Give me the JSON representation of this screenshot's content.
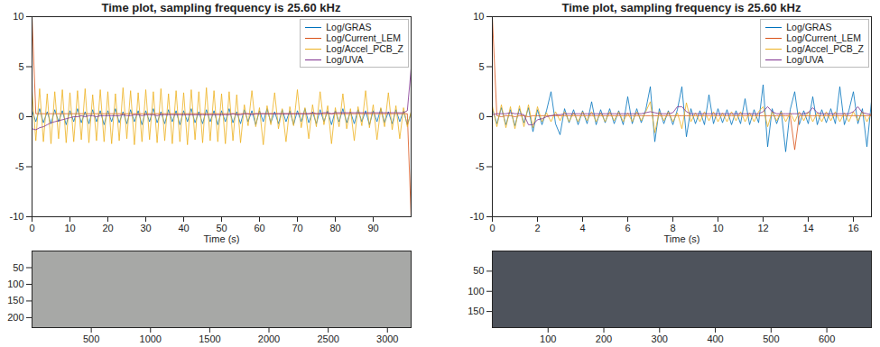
{
  "chart_data": [
    {
      "type": "line",
      "title": "Time plot, sampling frequency is 25.60 kHz",
      "x_label": "Time (s)",
      "xlim": [
        0,
        100
      ],
      "xticks": [
        0,
        10,
        20,
        30,
        40,
        50,
        60,
        70,
        80,
        90
      ],
      "ylim": [
        -10,
        10
      ],
      "yticks": [
        -10,
        -5,
        0,
        5,
        10
      ],
      "grid": false,
      "legend": "upper right",
      "x": [
        0,
        1,
        2,
        3,
        4,
        5,
        6,
        7,
        8,
        9,
        10,
        11,
        12,
        13,
        14,
        15,
        16,
        17,
        18,
        19,
        20,
        21,
        22,
        23,
        24,
        25,
        26,
        27,
        28,
        29,
        30,
        31,
        32,
        33,
        34,
        35,
        36,
        37,
        38,
        39,
        40,
        41,
        42,
        43,
        44,
        45,
        46,
        47,
        48,
        49,
        50,
        51,
        52,
        53,
        54,
        55,
        56,
        57,
        58,
        59,
        60,
        61,
        62,
        63,
        64,
        65,
        66,
        67,
        68,
        69,
        70,
        71,
        72,
        73,
        74,
        75,
        76,
        77,
        78,
        79,
        80,
        81,
        82,
        83,
        84,
        85,
        86,
        87,
        88,
        89,
        90,
        91,
        92,
        93,
        94,
        95,
        96,
        97,
        98,
        99,
        100
      ],
      "series": [
        {
          "name": "Log/GRAS",
          "color": "#0072BD",
          "values": [
            0.6,
            -0.5,
            0.8,
            -0.6,
            0.5,
            -0.7,
            0.7,
            -0.5,
            0.6,
            -0.8,
            0.6,
            -0.5,
            0.8,
            -0.6,
            0.5,
            -0.7,
            0.7,
            -0.5,
            0.6,
            -0.8,
            0.6,
            -0.5,
            0.8,
            -0.6,
            0.5,
            -0.7,
            0.7,
            -0.5,
            0.6,
            -0.8,
            0.6,
            -0.5,
            0.8,
            -0.6,
            0.5,
            -0.7,
            0.7,
            -0.5,
            0.6,
            -0.8,
            0.6,
            -0.5,
            0.8,
            -0.6,
            0.5,
            -0.7,
            0.7,
            -0.5,
            0.6,
            -0.8,
            0.6,
            -0.5,
            0.8,
            -0.6,
            0.5,
            -0.7,
            0.7,
            -0.5,
            0.6,
            -0.8,
            0.6,
            -0.5,
            0.8,
            -0.6,
            0.5,
            -0.7,
            0.7,
            -0.5,
            0.6,
            -0.8,
            0.6,
            -0.5,
            0.8,
            -0.6,
            0.5,
            -0.7,
            0.7,
            -0.5,
            0.6,
            -0.8,
            0.6,
            -0.5,
            0.8,
            -0.6,
            0.5,
            -0.7,
            0.7,
            -0.5,
            0.6,
            -0.8,
            0.6,
            -0.5,
            0.8,
            -0.6,
            0.5,
            -0.7,
            0.7,
            -0.5,
            0.6,
            -0.8,
            0.4
          ]
        },
        {
          "name": "Log/Current_LEM",
          "color": "#D95319",
          "values": [
            10,
            0.3,
            0.3,
            0.3,
            0.3,
            0.3,
            0.3,
            0.3,
            0.3,
            0.3,
            0.3,
            0.3,
            0.3,
            0.3,
            0.3,
            0.3,
            0.3,
            0.3,
            0.3,
            0.3,
            0.3,
            0.3,
            0.3,
            0.3,
            0.3,
            0.3,
            0.3,
            0.3,
            0.3,
            0.3,
            0.3,
            0.3,
            0.3,
            0.3,
            0.3,
            0.3,
            0.3,
            0.3,
            0.3,
            0.3,
            0.3,
            0.3,
            0.3,
            0.3,
            0.3,
            0.3,
            0.3,
            0.3,
            0.3,
            0.3,
            0.3,
            0.3,
            0.3,
            0.3,
            0.3,
            0.3,
            0.3,
            0.3,
            0.3,
            0.3,
            0.3,
            0.3,
            0.3,
            0.3,
            0.3,
            0.3,
            0.3,
            0.3,
            0.3,
            0.3,
            0.3,
            0.3,
            0.3,
            0.3,
            0.3,
            0.3,
            0.3,
            0.3,
            0.3,
            0.3,
            0.3,
            0.3,
            0.3,
            0.3,
            0.3,
            0.3,
            0.3,
            0.3,
            0.3,
            0.3,
            0.3,
            0.3,
            0.3,
            0.3,
            0.3,
            0.3,
            0.3,
            0.3,
            0.3,
            0.3,
            -10
          ]
        },
        {
          "name": "Log/Accel_PCB_Z",
          "color": "#EDB120",
          "values": [
            2.6,
            -2.4,
            2.8,
            -2.5,
            2.3,
            -2.7,
            2.5,
            -2.2,
            2.7,
            -2.6,
            2.4,
            -2.5,
            2.6,
            -2.3,
            2.8,
            -2.6,
            2.2,
            -2.4,
            2.7,
            -2.5,
            2.5,
            -2.7,
            2.3,
            -2.4,
            2.9,
            -2.2,
            2.6,
            -2.8,
            2.4,
            -2.5,
            2.7,
            -2.3,
            2.5,
            -2.6,
            2.8,
            -2.4,
            2.3,
            -2.7,
            2.6,
            -2.5,
            2.4,
            -2.8,
            2.7,
            -2.3,
            2.5,
            -2.6,
            2.9,
            -2.4,
            2.6,
            -2.5,
            2.3,
            -2.7,
            2.5,
            -2.4,
            2.2,
            -2.6,
            1.2,
            -0.9,
            2.6,
            -1.0,
            0.9,
            -2.8,
            1.1,
            -0.8,
            2.4,
            -1.2,
            0.8,
            -2.5,
            1.0,
            -0.9,
            2.7,
            -1.1,
            0.9,
            -2.2,
            1.2,
            -1.0,
            2.5,
            -0.8,
            1.1,
            -2.7,
            0.9,
            -1.0,
            2.3,
            -1.2,
            0.8,
            -2.4,
            1.0,
            -0.9,
            2.6,
            -1.1,
            1.2,
            -2.3,
            0.9,
            -1.0,
            2.4,
            -1.3,
            1.1,
            -2.2,
            0.9,
            -1.0,
            0.5
          ]
        },
        {
          "name": "Log/UVA",
          "color": "#7E2F8E",
          "values": [
            -1.2,
            -1.3,
            -1.1,
            -1.0,
            -0.8,
            -0.6,
            -0.5,
            -0.4,
            -0.3,
            -0.2,
            -0.1,
            0.0,
            0.0,
            0.1,
            0.0,
            0.1,
            0.1,
            0.0,
            0.1,
            0.1,
            0.1,
            0.1,
            0.1,
            0.1,
            0.2,
            0.1,
            0.1,
            0.2,
            0.2,
            0.1,
            0.2,
            0.2,
            0.2,
            0.1,
            0.2,
            0.2,
            0.2,
            0.2,
            0.2,
            0.2,
            0.2,
            0.2,
            0.2,
            0.2,
            0.2,
            0.2,
            0.2,
            0.2,
            0.2,
            0.2,
            0.2,
            0.2,
            0.2,
            0.3,
            0.2,
            0.2,
            0.3,
            0.3,
            0.2,
            0.3,
            0.3,
            0.3,
            0.3,
            0.3,
            0.3,
            0.3,
            0.3,
            0.3,
            0.3,
            0.3,
            0.3,
            0.3,
            0.3,
            0.3,
            0.4,
            0.3,
            0.3,
            0.4,
            0.4,
            0.3,
            0.4,
            0.4,
            0.4,
            0.4,
            0.4,
            0.4,
            0.4,
            0.4,
            0.4,
            0.4,
            0.4,
            0.4,
            0.4,
            0.4,
            0.4,
            0.4,
            0.4,
            0.4,
            0.4,
            0.6,
            4.8
          ]
        }
      ]
    },
    {
      "type": "line",
      "title": "Time plot, sampling frequency is 25.60 kHz",
      "x_label": "Time (s)",
      "xlim": [
        0,
        16.8
      ],
      "xticks": [
        0,
        2,
        4,
        6,
        8,
        10,
        12,
        14,
        16
      ],
      "ylim": [
        -10,
        10
      ],
      "yticks": [
        -10,
        -5,
        0,
        5,
        10
      ],
      "grid": false,
      "legend": "upper right",
      "x": [
        0,
        0.2,
        0.4,
        0.6,
        0.8,
        1,
        1.2,
        1.4,
        1.6,
        1.8,
        2,
        2.2,
        2.4,
        2.6,
        2.8,
        3,
        3.2,
        3.4,
        3.6,
        3.8,
        4,
        4.2,
        4.4,
        4.6,
        4.8,
        5,
        5.2,
        5.4,
        5.6,
        5.8,
        6,
        6.2,
        6.4,
        6.6,
        6.8,
        7,
        7.2,
        7.4,
        7.6,
        7.8,
        8,
        8.2,
        8.4,
        8.6,
        8.8,
        9,
        9.2,
        9.4,
        9.6,
        9.8,
        10,
        10.2,
        10.4,
        10.6,
        10.8,
        11,
        11.2,
        11.4,
        11.6,
        11.8,
        12,
        12.2,
        12.4,
        12.6,
        12.8,
        13,
        13.2,
        13.4,
        13.6,
        13.8,
        14,
        14.2,
        14.4,
        14.6,
        14.8,
        15,
        15.2,
        15.4,
        15.6,
        15.8,
        16,
        16.2,
        16.4,
        16.6,
        16.8
      ],
      "series": [
        {
          "name": "Log/GRAS",
          "color": "#0072BD",
          "values": [
            0.8,
            -0.7,
            0.9,
            -0.8,
            0.7,
            -0.9,
            0.8,
            -0.6,
            0.9,
            -1.5,
            0.7,
            -0.8,
            0.6,
            2.5,
            -0.7,
            -1.8,
            0.8,
            -0.6,
            0.7,
            -0.8,
            0.6,
            -0.7,
            1.5,
            -0.8,
            0.7,
            -0.6,
            0.8,
            -0.7,
            0.6,
            -0.8,
            2.0,
            -0.7,
            0.8,
            -0.6,
            0.7,
            3.0,
            -2.5,
            0.8,
            -0.7,
            0.6,
            -0.8,
            0.7,
            3.0,
            -2.0,
            0.8,
            -0.7,
            0.6,
            -0.8,
            2.2,
            -0.7,
            0.8,
            -0.6,
            0.7,
            -0.8,
            0.6,
            -0.7,
            1.8,
            -0.8,
            0.7,
            -0.6,
            3.2,
            -3.0,
            0.8,
            -0.7,
            0.6,
            -3.5,
            0.7,
            2.5,
            -0.8,
            0.6,
            -0.7,
            2.0,
            -0.8,
            0.7,
            -0.6,
            0.8,
            -0.7,
            3.0,
            -0.8,
            0.6,
            2.5,
            -0.7,
            0.8,
            -3.0,
            1.5
          ]
        },
        {
          "name": "Log/Current_LEM",
          "color": "#D95319",
          "values": [
            10,
            0.1,
            0.0,
            0.1,
            0.1,
            0.0,
            0.1,
            0.1,
            0.0,
            0.1,
            0.1,
            0.1,
            0.1,
            0.1,
            0.1,
            0.1,
            0.1,
            0.1,
            0.1,
            0.1,
            0.1,
            0.1,
            0.1,
            0.1,
            0.1,
            0.1,
            0.1,
            0.1,
            0.1,
            0.1,
            0.1,
            0.1,
            0.1,
            0.1,
            0.1,
            0.1,
            0.1,
            0.1,
            0.1,
            0.1,
            0.1,
            0.1,
            0.1,
            0.1,
            0.1,
            0.1,
            0.1,
            0.1,
            0.1,
            0.1,
            0.1,
            0.1,
            0.1,
            0.1,
            0.1,
            0.1,
            0.1,
            0.1,
            0.1,
            0.1,
            0.1,
            0.1,
            0.1,
            0.1,
            0.1,
            0.1,
            0.1,
            -3.3,
            0.1,
            0.1,
            0.1,
            0.1,
            0.1,
            0.1,
            0.1,
            0.1,
            0.1,
            0.1,
            0.1,
            0.1,
            0.1,
            0.1,
            0.1,
            0.1,
            0.1
          ]
        },
        {
          "name": "Log/Accel_PCB_Z",
          "color": "#EDB120",
          "values": [
            1.1,
            -1.0,
            1.2,
            -1.1,
            1.0,
            -1.2,
            1.1,
            -1.0,
            1.2,
            -1.1,
            1.0,
            -0.5,
            0.4,
            -0.5,
            0.5,
            -0.4,
            0.5,
            -0.5,
            0.4,
            -0.5,
            0.5,
            -0.4,
            0.5,
            -0.5,
            0.4,
            -0.5,
            0.5,
            -0.4,
            0.5,
            -0.5,
            0.4,
            -0.5,
            0.5,
            -0.4,
            0.5,
            1.5,
            -1.6,
            0.5,
            -0.4,
            0.5,
            -0.5,
            0.4,
            -1.2,
            1.4,
            -0.5,
            0.4,
            -0.5,
            0.5,
            -0.4,
            0.5,
            -0.5,
            0.4,
            -0.5,
            0.5,
            -0.4,
            0.5,
            -0.5,
            0.4,
            -0.5,
            0.5,
            1.0,
            -1.0,
            0.5,
            -0.4,
            0.5,
            -0.5,
            0.4,
            -0.5,
            0.5,
            -0.4,
            0.5,
            -0.5,
            0.4,
            -0.5,
            0.5,
            -0.4,
            0.5,
            -0.5,
            0.4,
            -0.5,
            0.5,
            -0.4,
            0.5,
            -0.5,
            0.4
          ]
        },
        {
          "name": "Log/UVA",
          "color": "#7E2F8E",
          "values": [
            0.2,
            0.3,
            0.3,
            0.3,
            0.4,
            0.3,
            0.3,
            0.2,
            -0.8,
            -0.8,
            -0.3,
            -0.2,
            0.0,
            0.1,
            0.2,
            0.2,
            0.3,
            0.3,
            0.3,
            0.3,
            0.3,
            0.3,
            0.3,
            0.3,
            0.3,
            0.3,
            0.3,
            0.3,
            0.3,
            0.3,
            0.3,
            0.3,
            0.3,
            0.3,
            0.4,
            0.5,
            0.4,
            0.3,
            0.3,
            0.3,
            0.4,
            1.0,
            1.0,
            0.5,
            0.3,
            0.3,
            0.3,
            0.3,
            0.3,
            0.3,
            0.3,
            0.3,
            0.3,
            0.3,
            0.3,
            0.3,
            0.3,
            0.3,
            0.3,
            0.3,
            0.5,
            1.0,
            0.5,
            0.3,
            0.3,
            0.3,
            0.3,
            0.3,
            0.3,
            0.3,
            0.4,
            0.9,
            0.4,
            0.3,
            0.3,
            0.3,
            0.3,
            0.3,
            0.3,
            0.3,
            0.5,
            1.0,
            0.4,
            0.3,
            0.2
          ]
        }
      ]
    },
    {
      "type": "image",
      "xlim": [
        0,
        3200
      ],
      "xticks": [
        500,
        1000,
        1500,
        2000,
        2500,
        3000
      ],
      "ylim": [
        230,
        0
      ],
      "yticks": [
        50,
        100,
        150,
        200
      ],
      "grid": false
    },
    {
      "type": "image",
      "xlim": [
        0,
        680
      ],
      "xticks": [
        100,
        200,
        300,
        400,
        500,
        600
      ],
      "ylim": [
        190,
        0
      ],
      "yticks": [
        50,
        100,
        150
      ],
      "grid": false
    }
  ]
}
